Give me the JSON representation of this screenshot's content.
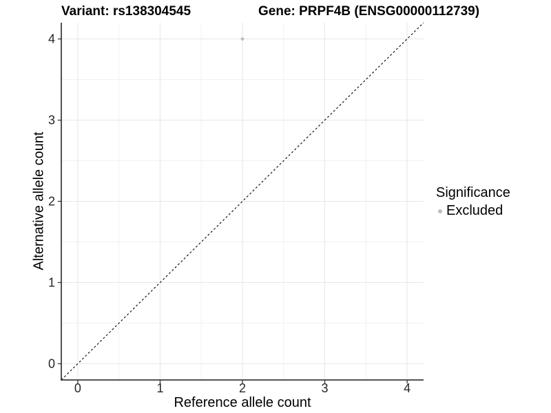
{
  "figure": {
    "title_left": "Variant: rs138304545",
    "title_right": "Gene: PRPF4B (ENSG00000112739)"
  },
  "chart_data": {
    "type": "scatter",
    "title": "Variant: rs138304545   Gene: PRPF4B (ENSG00000112739)",
    "xlabel": "Reference allele count",
    "ylabel": "Alternative allele count",
    "xlim": [
      -0.2,
      4.2
    ],
    "ylim": [
      -0.2,
      4.2
    ],
    "xticks": [
      0,
      1,
      2,
      3,
      4
    ],
    "yticks": [
      0,
      1,
      2,
      3,
      4
    ],
    "minor_ticks": [
      0.5,
      1.5,
      2.5,
      3.5
    ],
    "grid": "major and minor, light gray on white",
    "series": [
      {
        "name": "Excluded",
        "color": "#bdbdbd",
        "points": [
          {
            "x": 2,
            "y": 4
          }
        ]
      }
    ],
    "reference_line": {
      "description": "identity line y = x",
      "style": "dashed",
      "color": "#000000",
      "from": [
        -0.2,
        -0.2
      ],
      "to": [
        4.2,
        4.2
      ]
    },
    "legend": {
      "title": "Significance",
      "position": "right",
      "items": [
        {
          "label": "Excluded",
          "color": "#bdbdbd",
          "marker": "circle"
        }
      ]
    }
  },
  "colors": {
    "background": "#ffffff",
    "grid_major": "#e6e6e6",
    "grid_minor": "#f1f1f1",
    "axis_line": "#3c3c3c",
    "tick_mark": "#333333",
    "tick_label": "#262626",
    "point": "#bdbdbd"
  }
}
